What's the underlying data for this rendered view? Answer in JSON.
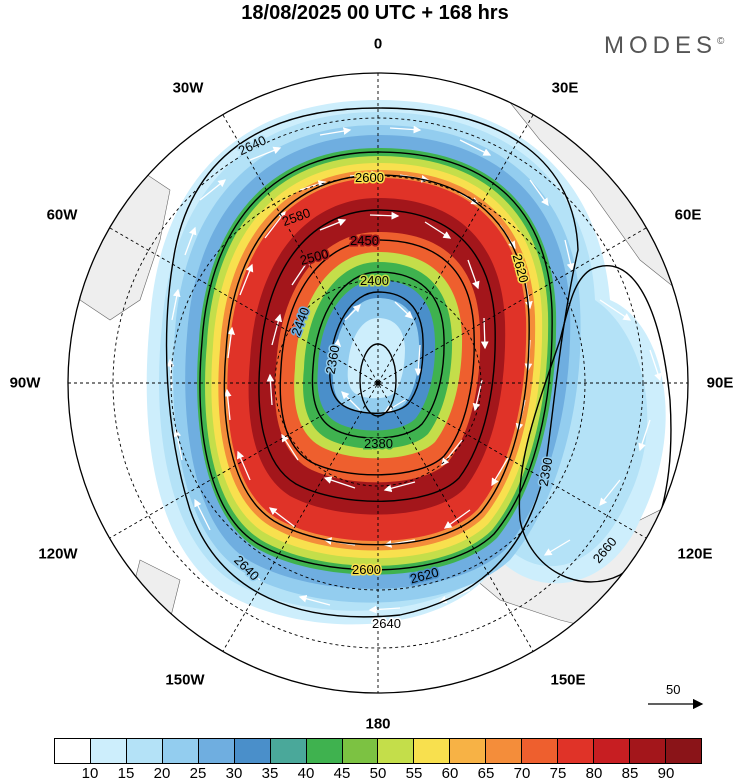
{
  "title": "18/08/2025  00 UTC  + 168 hrs",
  "brand": "MODES",
  "brand_mark": "©",
  "longitude_labels": [
    "0",
    "30E",
    "60E",
    "90E",
    "120E",
    "150E",
    "180",
    "150W",
    "120W",
    "90W",
    "60W",
    "30W"
  ],
  "contour_labels": [
    "2640",
    "2600",
    "2580",
    "2500",
    "2450",
    "2400",
    "2440",
    "2360",
    "2380",
    "2600",
    "2620",
    "2640",
    "2660",
    "2390",
    "2620",
    "2640"
  ],
  "colorbar": {
    "labels": [
      "10",
      "15",
      "20",
      "25",
      "30",
      "35",
      "40",
      "45",
      "50",
      "55",
      "60",
      "65",
      "70",
      "75",
      "80",
      "85",
      "90"
    ],
    "colors": [
      "#ffffff",
      "#cdeefc",
      "#b4e2f7",
      "#93cdef",
      "#6faee0",
      "#4a8fca",
      "#4aa89a",
      "#3fb24f",
      "#7cc242",
      "#c4de4a",
      "#f8e04e",
      "#f7b245",
      "#f48d3a",
      "#ee5f2e",
      "#e03328",
      "#c71e22",
      "#a3161b",
      "#8a1418"
    ]
  },
  "vector_reference": {
    "label": "50"
  }
}
